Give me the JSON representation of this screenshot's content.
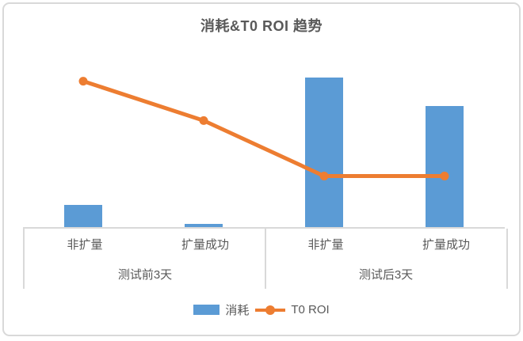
{
  "colors": {
    "bar": "#5b9bd5",
    "line": "#ed7d31",
    "axis": "#d9d9d9",
    "text": "#595959",
    "card_border": "#d9d9d9"
  },
  "chart_data": {
    "type": "bar",
    "subtype": "combo-bar-line",
    "title": "消耗&T0 ROI 趋势",
    "categories": [
      "非扩量",
      "扩量成功",
      "非扩量",
      "扩量成功"
    ],
    "group_labels": [
      "测试前3天",
      "测试后3天"
    ],
    "series": [
      {
        "name": "消耗",
        "type": "bar",
        "values": [
          15,
          2,
          100,
          81
        ],
        "ylim": [
          0,
          119
        ]
      },
      {
        "name": "T0 ROI",
        "type": "line",
        "values": [
          100,
          73,
          35,
          35
        ],
        "ylim": [
          0,
          122
        ]
      }
    ],
    "xlabel": "",
    "ylabel": "",
    "value_axis_visible": false,
    "grid": false,
    "legend_position": "bottom",
    "units": "relative (no value axis or data labels shown in image)"
  }
}
